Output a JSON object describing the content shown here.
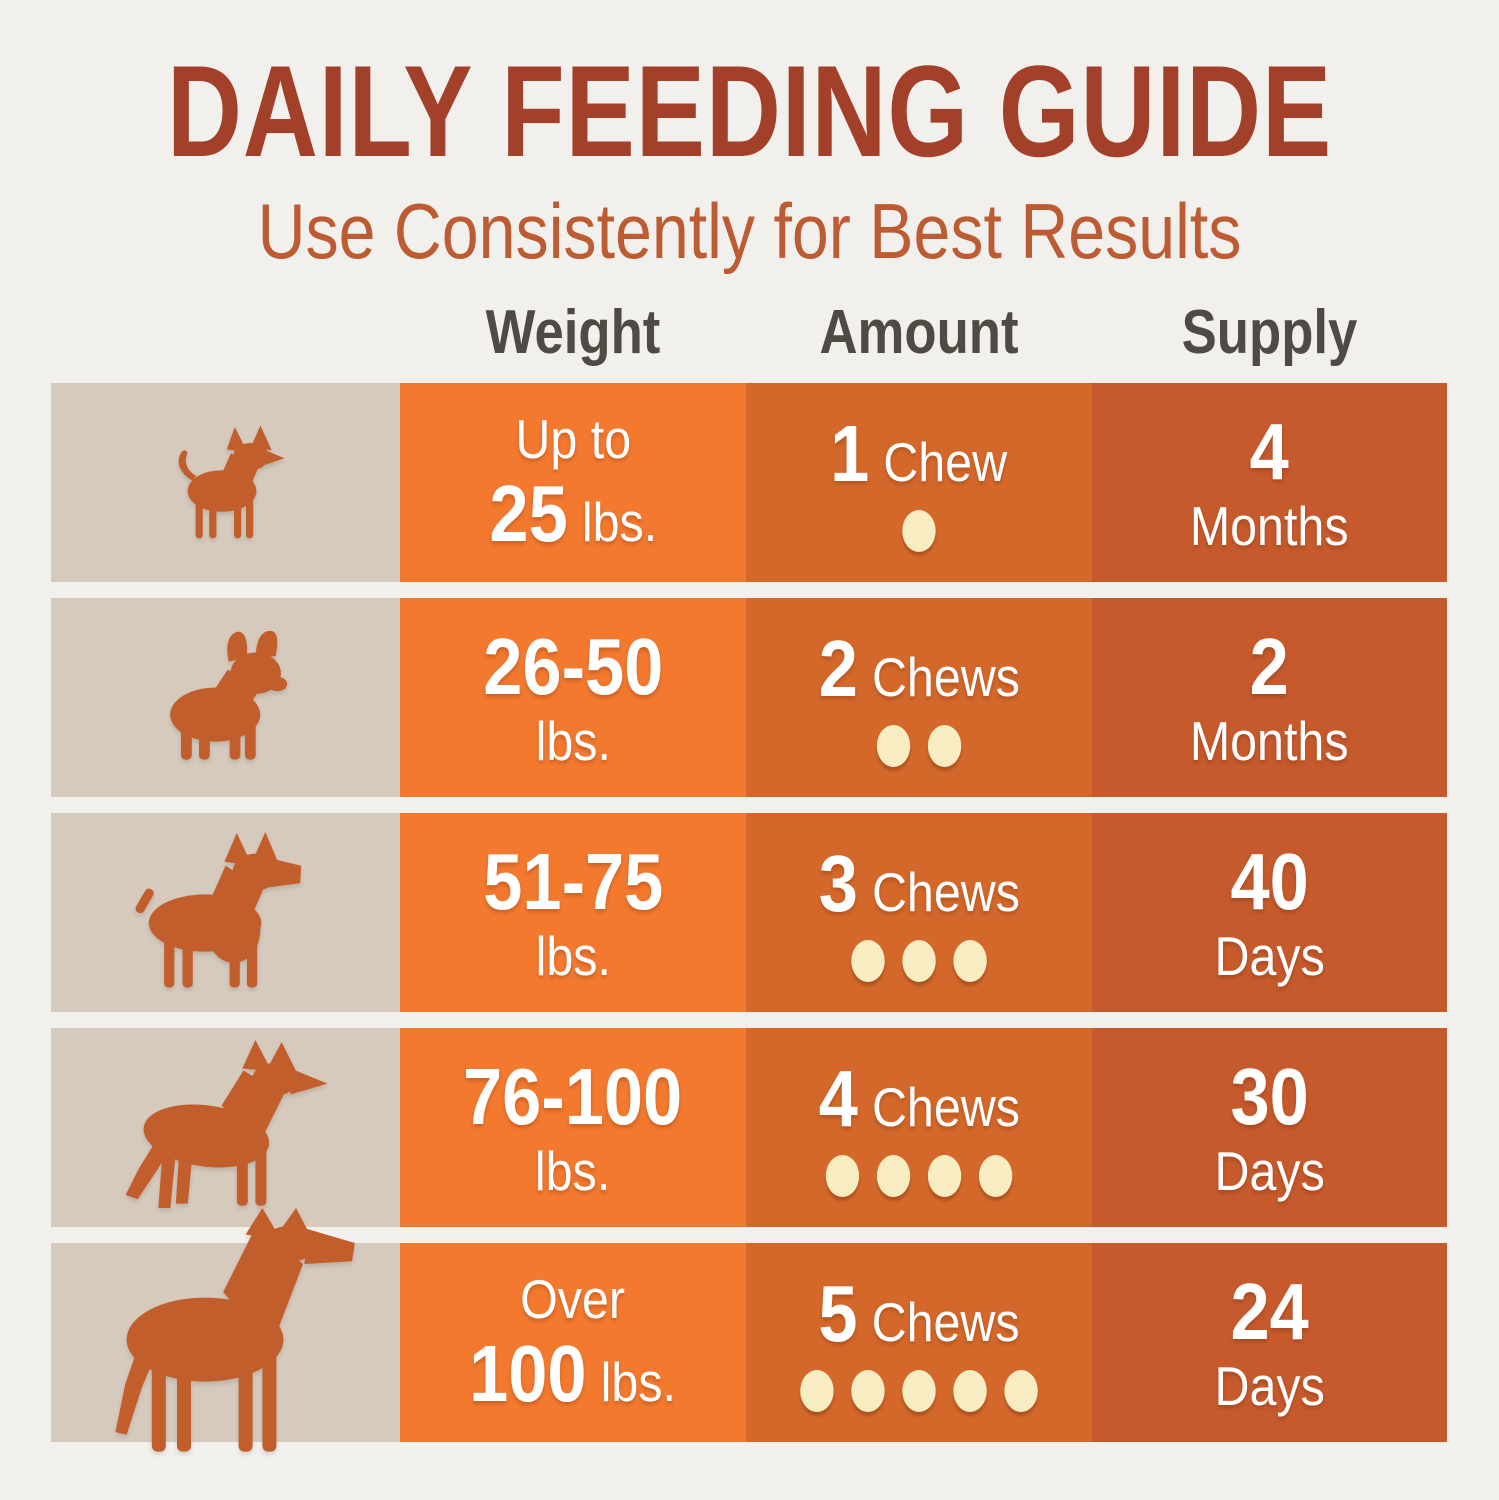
{
  "title": "DAILY FEEDING GUIDE",
  "subtitle": "Use Consistently for Best Results",
  "headers": {
    "weight": "Weight",
    "amount": "Amount",
    "supply": "Supply"
  },
  "rows": [
    {
      "dog_icon": "chihuahua-icon",
      "weight_pre": "Up to",
      "weight_value": "25",
      "weight_unit": "lbs.",
      "amount_value": "1",
      "amount_label": "Chew",
      "chew_count": 1,
      "supply_value": "4",
      "supply_unit": "Months"
    },
    {
      "dog_icon": "french-bulldog-icon",
      "weight_value": "26-50",
      "weight_unit": "lbs.",
      "amount_value": "2",
      "amount_label": "Chews",
      "chew_count": 2,
      "supply_value": "2",
      "supply_unit": "Months"
    },
    {
      "dog_icon": "boxer-icon",
      "weight_value": "51-75",
      "weight_unit": "lbs.",
      "amount_value": "3",
      "amount_label": "Chews",
      "chew_count": 3,
      "supply_value": "40",
      "supply_unit": "Days"
    },
    {
      "dog_icon": "german-shepherd-icon",
      "weight_value": "76-100",
      "weight_unit": "lbs.",
      "amount_value": "4",
      "amount_label": "Chews",
      "chew_count": 4,
      "supply_value": "30",
      "supply_unit": "Days"
    },
    {
      "dog_icon": "great-dane-icon",
      "weight_pre": "Over",
      "weight_value": "100",
      "weight_unit": "lbs.",
      "amount_value": "5",
      "amount_label": "Chews",
      "chew_count": 5,
      "supply_value": "24",
      "supply_unit": "Days"
    }
  ],
  "colors": {
    "page_bg": "#F2F0ED",
    "title": "#A2402A",
    "subtitle": "#BD5B33",
    "header_text": "#4F4B44",
    "dog_cell_bg": "#D6CABD",
    "weight_col_bg": "#F3792F",
    "amount_col_bg": "#D4682A",
    "supply_col_bg": "#C65A2C",
    "dog_silhouette": "#C25E2C",
    "chew_dot": "#F7ECC2",
    "cell_text": "#FFFFFF"
  },
  "chart_data": {
    "type": "table",
    "title": "DAILY FEEDING GUIDE",
    "subtitle": "Use Consistently for Best Results",
    "columns": [
      "Weight",
      "Amount",
      "Supply"
    ],
    "rows": [
      [
        "Up to 25 lbs.",
        "1 Chew",
        "4 Months"
      ],
      [
        "26-50 lbs.",
        "2 Chews",
        "2 Months"
      ],
      [
        "51-75 lbs.",
        "3 Chews",
        "40 Days"
      ],
      [
        "76-100 lbs.",
        "4 Chews",
        "30 Days"
      ],
      [
        "Over 100 lbs.",
        "5 Chews",
        "24 Days"
      ]
    ]
  }
}
